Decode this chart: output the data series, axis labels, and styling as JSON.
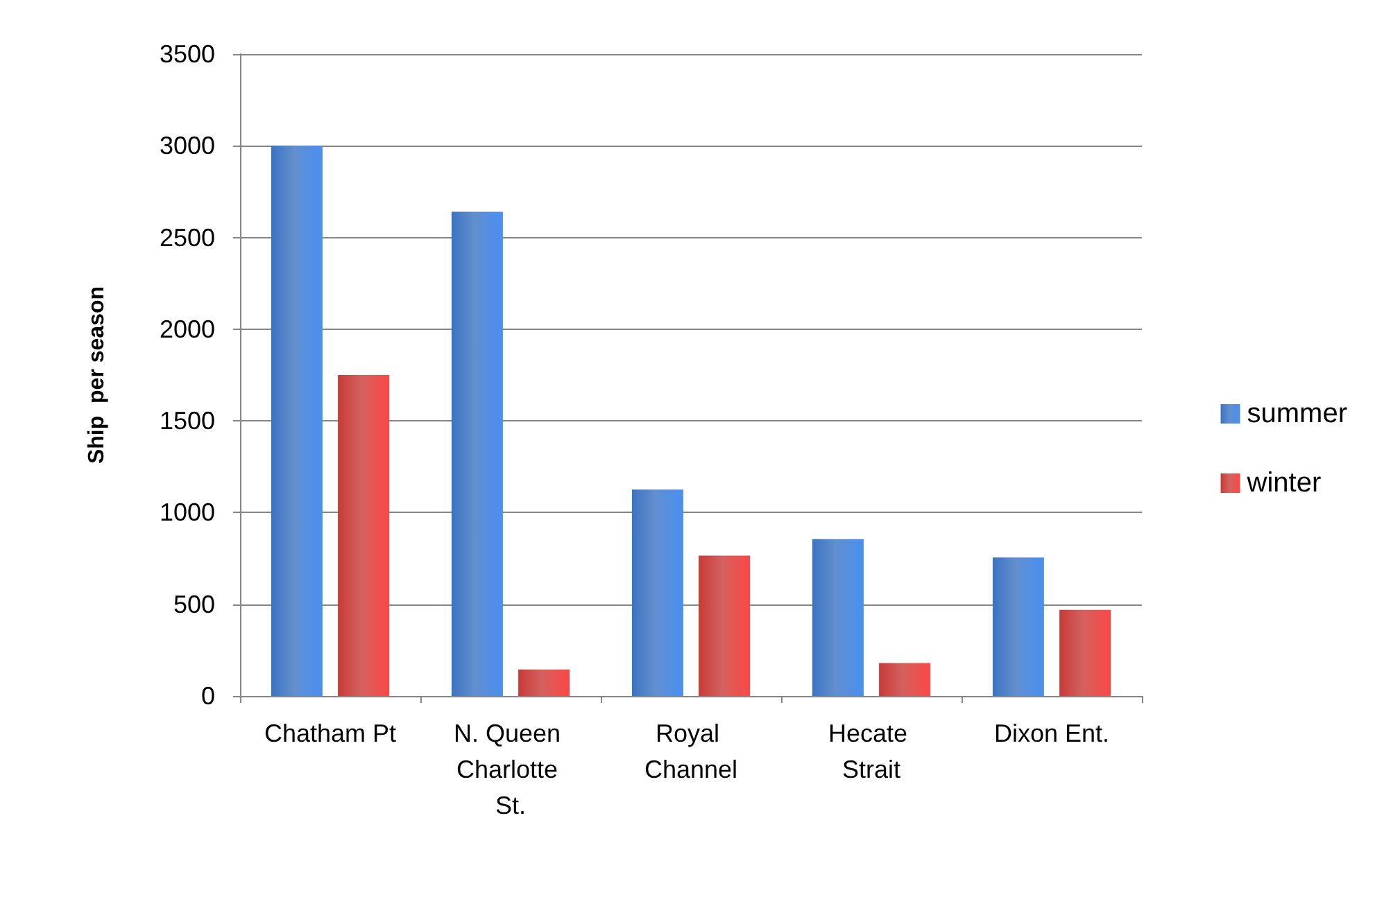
{
  "chart_data": {
    "type": "bar",
    "ylabel": "Ship  per season",
    "categories": [
      "Chatham Pt",
      "N. Queen Charlotte St.",
      "Royal Channel",
      "Hecate Strait",
      "Dixon Ent."
    ],
    "series": [
      {
        "name": "summer",
        "color": "#3b73c2",
        "values": [
          3000,
          2640,
          1125,
          855,
          755
        ]
      },
      {
        "name": "winter",
        "color": "#c83a38",
        "values": [
          1750,
          145,
          765,
          180,
          470
        ]
      }
    ],
    "ylim": [
      0,
      3500
    ],
    "yticks": [
      0,
      500,
      1000,
      1500,
      2000,
      2500,
      3000,
      3500
    ],
    "grid": "y",
    "legend": "right"
  }
}
